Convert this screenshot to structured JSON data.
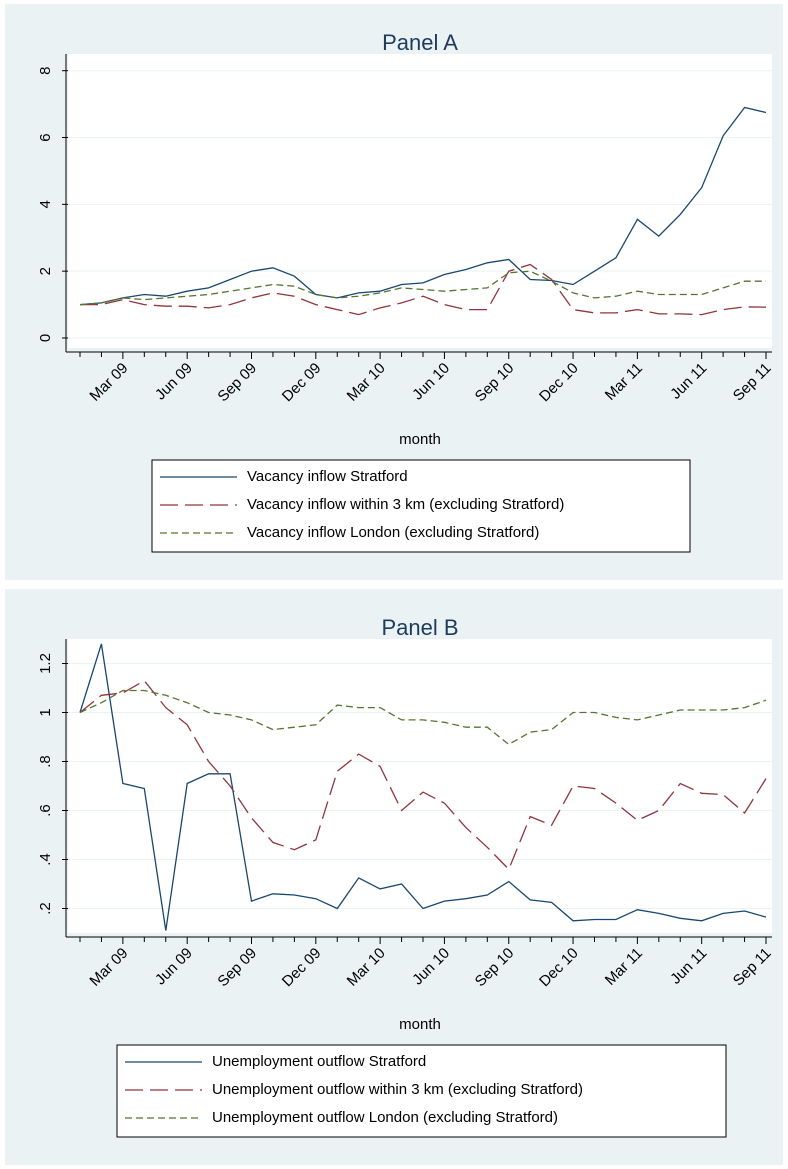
{
  "chart_data": [
    {
      "type": "line",
      "title": "Panel A",
      "x_label": "month",
      "categories": [
        null,
        null,
        "Mar 09",
        null,
        null,
        "Jun 09",
        null,
        null,
        "Sep 09",
        null,
        null,
        "Dec 09",
        null,
        null,
        "Mar 10",
        null,
        null,
        "Jun 10",
        null,
        null,
        "Sep 10",
        null,
        null,
        "Dec 10",
        null,
        null,
        "Mar 11",
        null,
        null,
        "Jun 11",
        null,
        null,
        "Sep 11"
      ],
      "series": [
        {
          "name": "Vacancy inflow Stratford",
          "color": "#1a476f",
          "dash": "solid",
          "values": [
            1.0,
            1.05,
            1.2,
            1.3,
            1.25,
            1.4,
            1.5,
            1.75,
            2.0,
            2.1,
            1.85,
            1.3,
            1.2,
            1.35,
            1.4,
            1.6,
            1.65,
            1.9,
            2.05,
            2.25,
            2.35,
            1.75,
            1.72,
            1.6,
            2.0,
            2.4,
            3.55,
            3.05,
            3.7,
            4.5,
            6.05,
            6.9,
            6.75
          ]
        },
        {
          "name": "Vacancy inflow within 3 km (excluding Stratford)",
          "color": "#90353b",
          "dash": "long",
          "values": [
            1.0,
            1.0,
            1.15,
            1.0,
            0.95,
            0.95,
            0.9,
            1.0,
            1.2,
            1.35,
            1.25,
            1.0,
            0.85,
            0.7,
            0.9,
            1.05,
            1.25,
            1.0,
            0.85,
            0.85,
            2.0,
            2.2,
            1.75,
            0.85,
            0.75,
            0.75,
            0.85,
            0.72,
            0.72,
            0.7,
            0.85,
            0.93,
            0.92
          ]
        },
        {
          "name": "Vacancy inflow London (excluding Stratford)",
          "color": "#55752f",
          "dash": "short",
          "values": [
            1.0,
            1.05,
            1.2,
            1.15,
            1.2,
            1.25,
            1.3,
            1.4,
            1.5,
            1.6,
            1.55,
            1.3,
            1.2,
            1.25,
            1.35,
            1.5,
            1.45,
            1.4,
            1.45,
            1.5,
            1.95,
            2.0,
            1.7,
            1.35,
            1.2,
            1.25,
            1.4,
            1.3,
            1.3,
            1.3,
            1.5,
            1.7,
            1.7
          ]
        }
      ],
      "ylim": [
        -0.3,
        8.5
      ],
      "yticks": [
        0,
        2,
        4,
        6,
        8
      ],
      "grid": true,
      "legend": "bottom"
    },
    {
      "type": "line",
      "title": "Panel B",
      "x_label": "month",
      "categories": [
        null,
        null,
        "Mar 09",
        null,
        null,
        "Jun 09",
        null,
        null,
        "Sep 09",
        null,
        null,
        "Dec 09",
        null,
        null,
        "Mar 10",
        null,
        null,
        "Jun 10",
        null,
        null,
        "Sep 10",
        null,
        null,
        "Dec 10",
        null,
        null,
        "Mar 11",
        null,
        null,
        "Jun 11",
        null,
        null,
        "Sep 11"
      ],
      "series": [
        {
          "name": "Unemployment outflow Stratford",
          "color": "#1a476f",
          "dash": "solid",
          "values": [
            1.0,
            1.28,
            0.71,
            0.69,
            0.11,
            0.71,
            0.75,
            0.75,
            0.23,
            0.26,
            0.255,
            0.24,
            0.2,
            0.325,
            0.28,
            0.3,
            0.2,
            0.23,
            0.24,
            0.255,
            0.31,
            0.235,
            0.225,
            0.15,
            0.155,
            0.155,
            0.195,
            0.18,
            0.16,
            0.15,
            0.18,
            0.19,
            0.165
          ]
        },
        {
          "name": "Unemployment outflow within 3 km (excluding Stratford)",
          "color": "#90353b",
          "dash": "long",
          "values": [
            1.0,
            1.07,
            1.08,
            1.13,
            1.02,
            0.95,
            0.8,
            0.7,
            0.57,
            0.47,
            0.44,
            0.48,
            0.76,
            0.83,
            0.78,
            0.6,
            0.675,
            0.63,
            0.53,
            0.45,
            0.36,
            0.575,
            0.54,
            0.7,
            0.69,
            0.63,
            0.56,
            0.6,
            0.71,
            0.67,
            0.665,
            0.59,
            0.73
          ]
        },
        {
          "name": "Unemployment outflow London (excluding Stratford)",
          "color": "#55752f",
          "dash": "short",
          "values": [
            1.0,
            1.04,
            1.09,
            1.09,
            1.07,
            1.04,
            1.0,
            0.99,
            0.97,
            0.93,
            0.94,
            0.95,
            1.03,
            1.02,
            1.02,
            0.97,
            0.97,
            0.96,
            0.94,
            0.94,
            0.87,
            0.92,
            0.93,
            1.0,
            1.0,
            0.98,
            0.97,
            0.99,
            1.01,
            1.01,
            1.01,
            1.02,
            1.05
          ]
        }
      ],
      "ylim": [
        0.1,
        1.3
      ],
      "yticks": [
        {
          "value": 0.2,
          "label": ".2"
        },
        {
          "value": 0.4,
          "label": ".4"
        },
        {
          "value": 0.6,
          "label": ".6"
        },
        {
          "value": 0.8,
          "label": ".8"
        },
        1,
        {
          "value": 1.2,
          "label": "1.2"
        }
      ],
      "grid": true,
      "legend": "bottom"
    }
  ]
}
